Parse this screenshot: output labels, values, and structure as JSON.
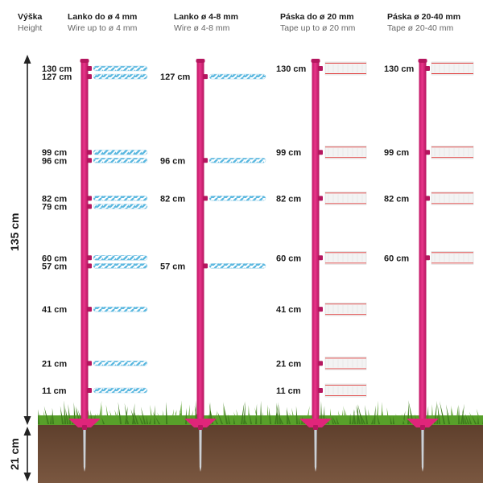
{
  "colors": {
    "post": "#e0257a",
    "post_dark": "#b5165f",
    "soil": "#6b4a36",
    "grass": "#58a02a",
    "grass_dark": "#3f7d1d",
    "wire_blue": "#5bb8e0",
    "tape_white": "#f3f3f3",
    "tape_red": "#e04040",
    "arrow": "#222222"
  },
  "height_header": {
    "label": "Výška",
    "sub": "Height"
  },
  "dimensions": {
    "above": "135 cm",
    "below": "21 cm"
  },
  "columns": [
    {
      "title": "Lanko do ø 4 mm",
      "subtitle": "Wire up to ø 4 mm",
      "conductor": "wire",
      "heights": [
        "130 cm",
        "127 cm",
        "99 cm",
        "96 cm",
        "82 cm",
        "79 cm",
        "60 cm",
        "57 cm",
        "41 cm",
        "21 cm",
        "11 cm"
      ]
    },
    {
      "title": "Lanko ø 4-8 mm",
      "subtitle": "Wire ø 4-8 mm",
      "conductor": "wire",
      "heights": [
        "127 cm",
        "96 cm",
        "82 cm",
        "57 cm"
      ]
    },
    {
      "title": "Páska do ø 20 mm",
      "subtitle": "Tape up to ø 20 mm",
      "conductor": "tape",
      "heights": [
        "130 cm",
        "99 cm",
        "82 cm",
        "60 cm",
        "41 cm",
        "21 cm",
        "11 cm"
      ]
    },
    {
      "title": "Páska  ø 20-40 mm",
      "subtitle": "Tape ø 20-40 mm",
      "conductor": "tape",
      "heights": [
        "130 cm",
        "99 cm",
        "82 cm",
        "60 cm"
      ]
    }
  ]
}
